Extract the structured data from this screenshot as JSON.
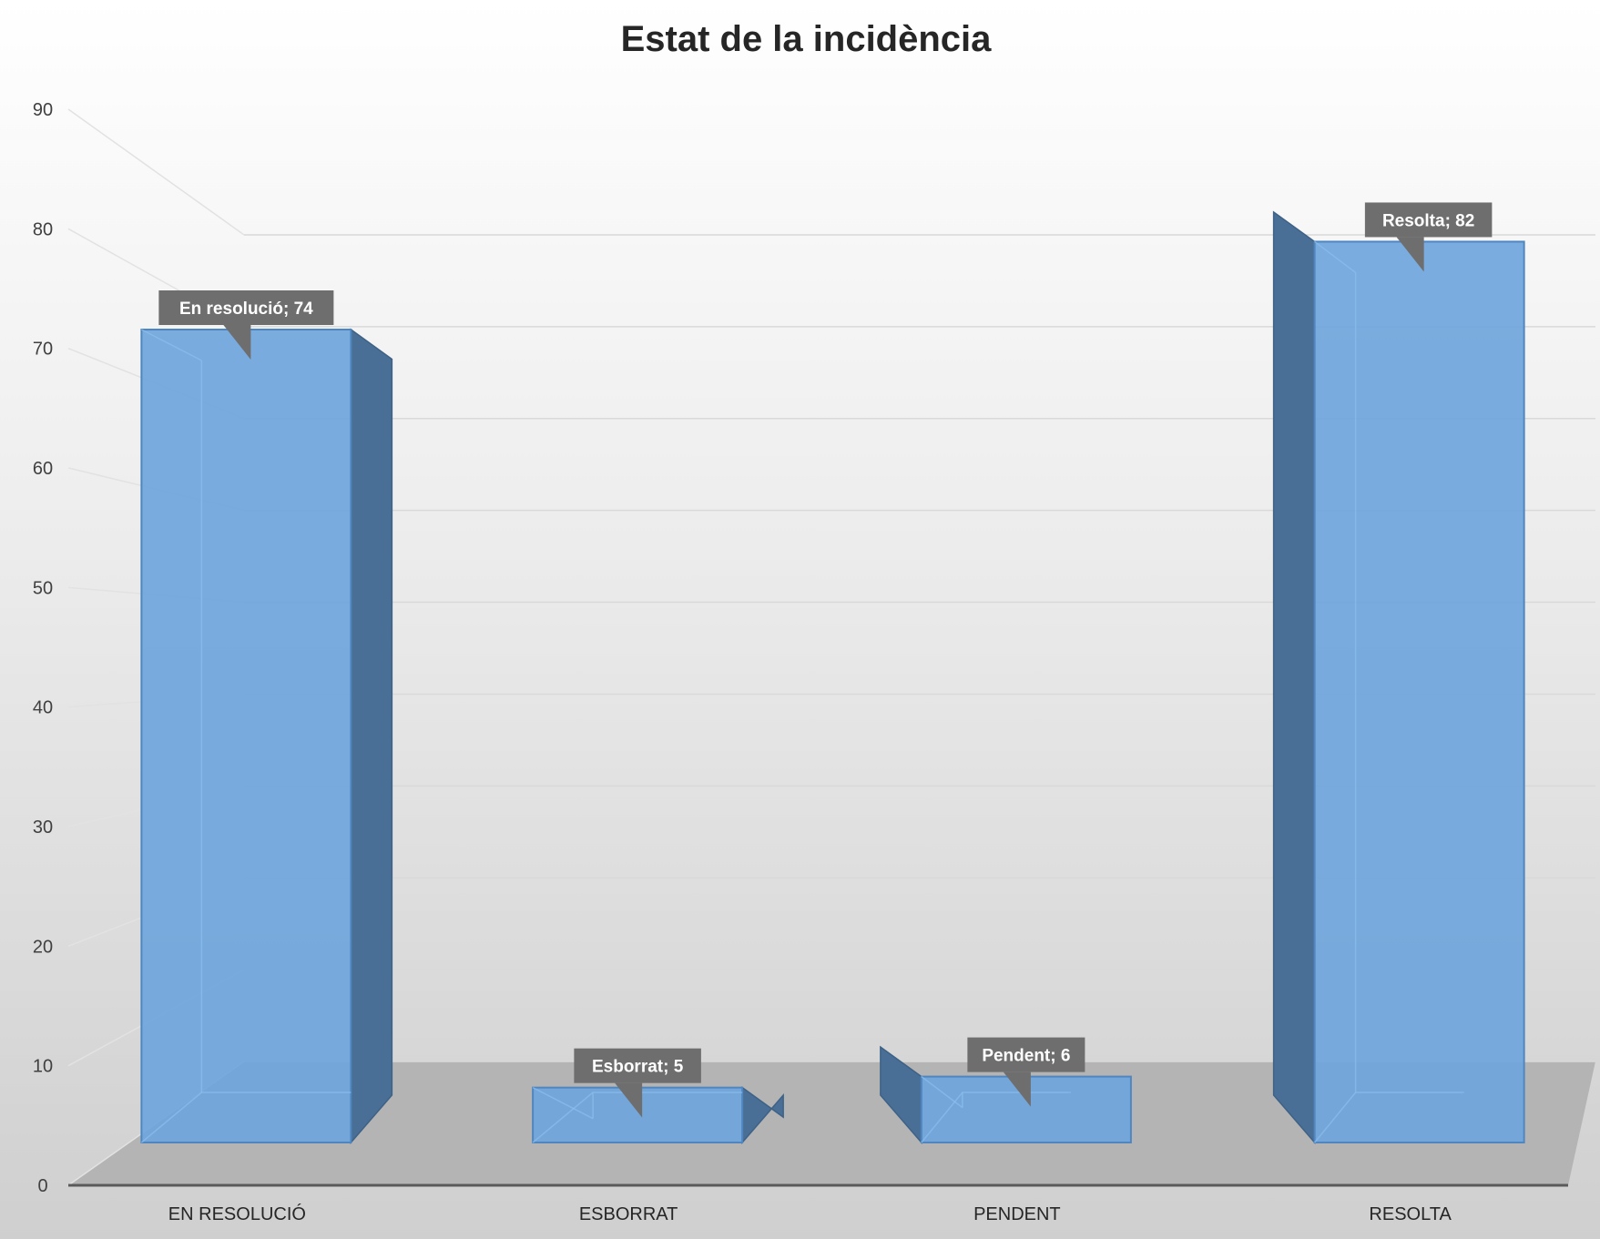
{
  "chart_data": {
    "type": "bar",
    "title": "Estat de la incidència",
    "categories": [
      "EN RESOLUCIÓ",
      "ESBORRAT",
      "PENDENT",
      "RESOLTA"
    ],
    "values": [
      74,
      5,
      6,
      82
    ],
    "data_labels": [
      "En resolució; 74",
      "Esborrat; 5",
      "Pendent; 6",
      "Resolta; 82"
    ],
    "yticks": [
      0,
      10,
      20,
      30,
      40,
      50,
      60,
      70,
      80,
      90
    ],
    "ylim": [
      0,
      90
    ],
    "xlabel": "",
    "ylabel": "",
    "grid": true,
    "legend": "none",
    "style": "3d-column",
    "colors": {
      "bar_front": "#6fa5dc",
      "bar_top": "#7fb5ea",
      "bar_side": "#4a6f96",
      "floor": "#b4b4b4",
      "label_bg": "#6e6e6e"
    }
  }
}
